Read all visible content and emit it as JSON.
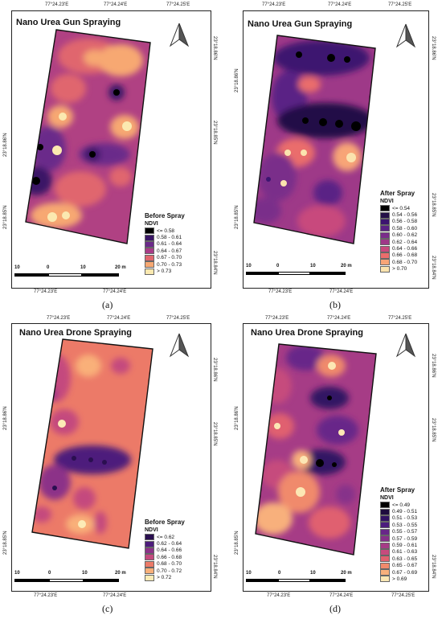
{
  "panels": [
    {
      "title": "Nano Urea Gun Spraying",
      "caption": "(a)",
      "legend_title": "Before Spray",
      "legend_heading": "NDVI",
      "legend": [
        "<= 0.58",
        "0.58 - 0.61",
        "0.61 - 0.64",
        "0.64 - 0.67",
        "0.67 - 0.70",
        "0.70 - 0.73",
        "> 0.73"
      ],
      "colors": [
        "#000000",
        "#3a1566",
        "#6b2a8a",
        "#a83b87",
        "#e0666e",
        "#f7a872",
        "#fbe9b0"
      ],
      "ticks_top": [
        "77°24.23'E",
        "77°24.24'E",
        "77°24.25'E"
      ],
      "ticks_bottom": [
        "77°24.23'E",
        "77°24.24'E"
      ],
      "ticks_left": [
        "23°18.85'N",
        "23°18.86'N"
      ],
      "ticks_right": [
        "23°18.86'N",
        "23°18.85'N",
        "23°18.84'N"
      ],
      "scale": [
        "10",
        "0",
        "10",
        "20 m"
      ]
    },
    {
      "title": "Nano Urea Gun Spraying",
      "caption": "(b)",
      "legend_title": "After Spray",
      "legend_heading": "NDVI",
      "legend": [
        "<= 0.54",
        "0.54 - 0.56",
        "0.56 - 0.58",
        "0.58 - 0.60",
        "0.60 - 0.62",
        "0.62 - 0.64",
        "0.64 - 0.66",
        "0.66 - 0.68",
        "0.68 - 0.70",
        "> 0.70"
      ],
      "colors": [
        "#000000",
        "#241047",
        "#3c1570",
        "#5a2285",
        "#7a2d8a",
        "#9e3988",
        "#c84a7d",
        "#ea6d6c",
        "#f8a577",
        "#fbe3ae"
      ],
      "ticks_top": [
        "77°24.23'E",
        "77°24.24'E",
        "77°24.25'E"
      ],
      "ticks_bottom": [
        "77°24.23'E",
        "77°24.24'E"
      ],
      "ticks_left": [
        "23°18.86'N",
        "23°18.85'N"
      ],
      "ticks_right": [
        "23°18.86'N",
        "23°18.85'N",
        "23°18.84'N"
      ],
      "scale": [
        "10",
        "0",
        "10",
        "20 m"
      ]
    },
    {
      "title": "Nano Urea Drone Spraying",
      "caption": "(c)",
      "legend_title": "Before Spray",
      "legend_heading": "NDVI",
      "legend": [
        "<= 0.62",
        "0.62 - 0.64",
        "0.64 - 0.66",
        "0.66 - 0.68",
        "0.68 - 0.70",
        "0.70 - 0.72",
        "> 0.72"
      ],
      "colors": [
        "#2a0f50",
        "#4d1c7c",
        "#8c3288",
        "#c44a7e",
        "#ec7a68",
        "#f9b079",
        "#fcebb6"
      ],
      "ticks_top": [
        "77°24.23'E",
        "77°24.24'E",
        "77°24.25'E"
      ],
      "ticks_bottom": [
        "77°24.23'E",
        "77°24.24'E"
      ],
      "ticks_left": [
        "23°18.86'N",
        "23°18.85'N"
      ],
      "ticks_right": [
        "23°18.86'N",
        "23°18.85'N",
        "23°18.84'N"
      ],
      "scale": [
        "10",
        "0",
        "10",
        "20 m"
      ]
    },
    {
      "title": "Nano Urea Drone Spraying",
      "caption": "(d)",
      "legend_title": "After Spray",
      "legend_heading": "NDVI",
      "legend": [
        "<= 0.49",
        "0.49 - 0.51",
        "0.51 - 0.53",
        "0.53 - 0.55",
        "0.55 - 0.57",
        "0.57 - 0.59",
        "0.59 - 0.61",
        "0.61 - 0.63",
        "0.63 - 0.65",
        "0.65 - 0.67",
        "0.67 - 0.69",
        "> 0.69"
      ],
      "colors": [
        "#000000",
        "#1e0c3e",
        "#321263",
        "#4c1c7d",
        "#682789",
        "#86318a",
        "#a63c86",
        "#c64b7d",
        "#e0616f",
        "#f08a6c",
        "#f8b07c",
        "#fce7b4"
      ],
      "ticks_top": [
        "77°24.23'E",
        "77°24.24'E",
        "77°24.25'E"
      ],
      "ticks_bottom": [
        "77°24.23'E",
        "77°24.24'E",
        "77°24.25'E"
      ],
      "ticks_left": [
        "23°18.86'N",
        "23°18.85'N"
      ],
      "ticks_right": [
        "23°18.86'N",
        "23°18.85'N",
        "23°18.84'N"
      ],
      "scale": [
        "10",
        "0",
        "10",
        "20 m"
      ]
    }
  ]
}
